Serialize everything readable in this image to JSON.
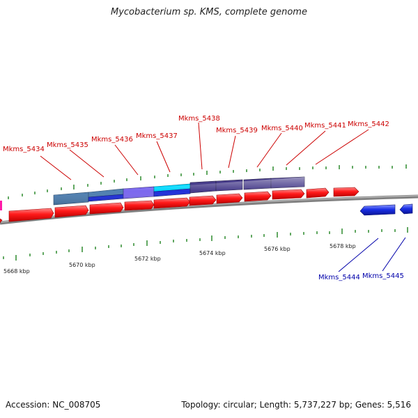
{
  "title": "Mycobacterium sp. KMS, complete genome",
  "footer": {
    "accession": "Accession: NC_008705",
    "summary": "Topology: circular; Length: 5,737,227 bp; Genes: 5,516"
  },
  "colors": {
    "forward_gene": "#ff0000",
    "reverse_gene": "#1a2fe6",
    "forward_label": "#cc0000",
    "reverse_label": "#0000aa",
    "backbone": "#808080",
    "tick": "#2e8b2e"
  },
  "axis": {
    "unit": "kbp",
    "tick_labels": [
      "5668 kbp",
      "5670 kbp",
      "5672 kbp",
      "5674 kbp",
      "5676 kbp",
      "5678 kbp"
    ]
  },
  "forward_labels": [
    "Mkms_5434",
    "Mkms_5435",
    "Mkms_5436",
    "Mkms_5437",
    "Mkms_5438",
    "Mkms_5439",
    "Mkms_5440",
    "Mkms_5441",
    "Mkms_5442"
  ],
  "reverse_labels": [
    "Mkms_5444",
    "Mkms_5445"
  ],
  "cog_bar_colors": [
    "#4f7fb0",
    "#2f4f9f",
    "#7b68ee",
    "#00c8ff",
    "#483d8b",
    "#483d8b",
    "#483d8b",
    "#483d8b"
  ]
}
